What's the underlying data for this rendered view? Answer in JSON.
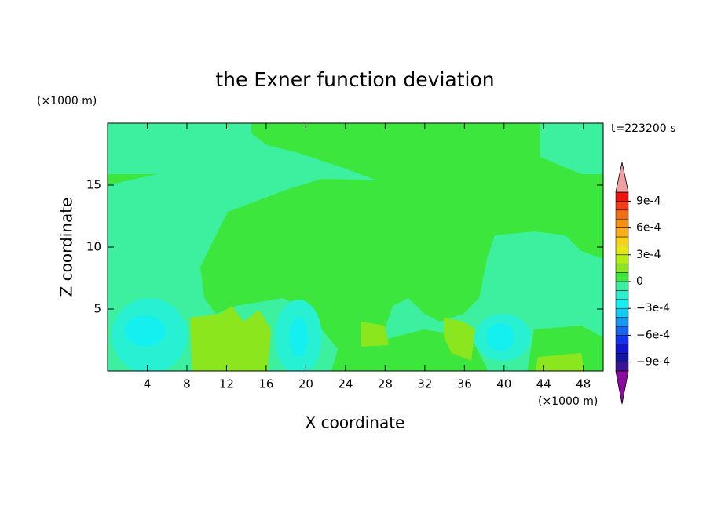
{
  "chart_data": {
    "type": "contour",
    "title": "the Exner function deviation",
    "xlabel": "X coordinate",
    "ylabel": "Z coordinate",
    "xunit": "(×1000 m)",
    "yunit": "(×1000 m)",
    "time_label": "t=223200 s",
    "xlim": [
      0,
      50
    ],
    "ylim": [
      0,
      20
    ],
    "xticks": [
      4,
      8,
      12,
      16,
      20,
      24,
      28,
      32,
      36,
      40,
      44,
      48
    ],
    "yticks": [
      5,
      10,
      15
    ],
    "levels": [
      -0.001,
      -0.0009,
      -0.0008,
      -0.0007,
      -0.0006,
      -0.0005,
      -0.0004,
      -0.0003,
      -0.0002,
      -0.0001,
      0,
      0.0001,
      0.0002,
      0.0003,
      0.0004,
      0.0005,
      0.0006,
      0.0007,
      0.0008,
      0.0009,
      0.001
    ],
    "colors": [
      "#3c1496",
      "#1414a0",
      "#1414d2",
      "#1432f0",
      "#1464f0",
      "#1496f0",
      "#14c8f0",
      "#14f0f0",
      "#28f0d2",
      "#3cf0a0",
      "#3ce63c",
      "#8ce61e",
      "#b4f014",
      "#e6e614",
      "#fad214",
      "#faaf14",
      "#f59014",
      "#f06e14",
      "#f03c14",
      "#f01010"
    ],
    "under_color": "#8c0aa0",
    "over_color": "#f0a0a0",
    "colorbar_ticks": [
      {
        "value": 0.0009,
        "label": "9e-4"
      },
      {
        "value": 0.0006,
        "label": "6e-4"
      },
      {
        "value": 0.0003,
        "label": "3e-4"
      },
      0,
      {
        "value": -0.0003,
        "label": "−3e-4"
      },
      {
        "value": -0.0006,
        "label": "−6e-4"
      },
      {
        "value": -0.0009,
        "label": "−9e-4"
      }
    ]
  }
}
